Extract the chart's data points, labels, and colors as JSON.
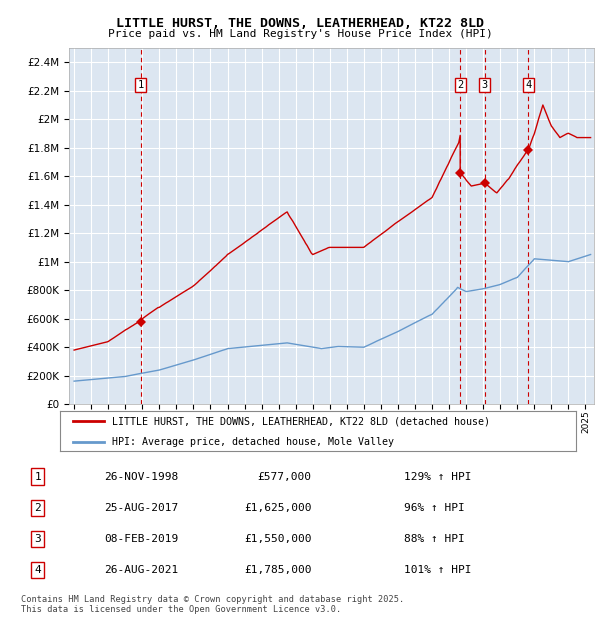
{
  "title": "LITTLE HURST, THE DOWNS, LEATHERHEAD, KT22 8LD",
  "subtitle": "Price paid vs. HM Land Registry's House Price Index (HPI)",
  "legend_line1": "LITTLE HURST, THE DOWNS, LEATHERHEAD, KT22 8LD (detached house)",
  "legend_line2": "HPI: Average price, detached house, Mole Valley",
  "footer1": "Contains HM Land Registry data © Crown copyright and database right 2025.",
  "footer2": "This data is licensed under the Open Government Licence v3.0.",
  "transactions": [
    {
      "num": 1,
      "date": "26-NOV-1998",
      "price": "£577,000",
      "hpi_pct": "129% ↑ HPI",
      "x": 1998.9,
      "y_red": 577000
    },
    {
      "num": 2,
      "date": "25-AUG-2017",
      "price": "£1,625,000",
      "hpi_pct": "96% ↑ HPI",
      "x": 2017.65,
      "y_red": 1625000
    },
    {
      "num": 3,
      "date": "08-FEB-2019",
      "price": "£1,550,000",
      "hpi_pct": "88% ↑ HPI",
      "x": 2019.1,
      "y_red": 1550000
    },
    {
      "num": 4,
      "date": "26-AUG-2021",
      "price": "£1,785,000",
      "hpi_pct": "101% ↑ HPI",
      "x": 2021.65,
      "y_red": 1785000
    }
  ],
  "red_color": "#cc0000",
  "blue_color": "#6699cc",
  "plot_bg": "#dce6f1",
  "grid_color": "#ffffff",
  "ylim": [
    0,
    2500000
  ],
  "yticks": [
    0,
    200000,
    400000,
    600000,
    800000,
    1000000,
    1200000,
    1400000,
    1600000,
    1800000,
    2000000,
    2200000,
    2400000
  ],
  "xlim_start": 1994.7,
  "xlim_end": 2025.5
}
